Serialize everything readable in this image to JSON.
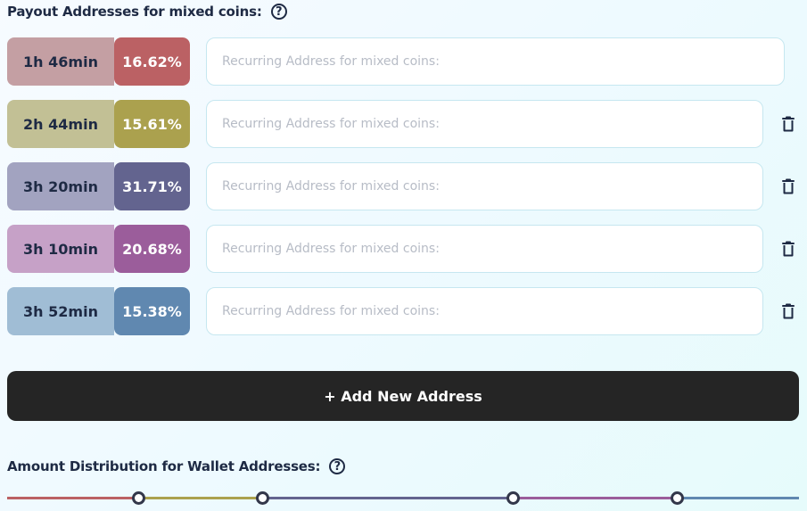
{
  "payout": {
    "title": "Payout Addresses for mixed coins:",
    "help_icon": "?",
    "rows": [
      {
        "time": "1h 46min",
        "percent": "16.62%",
        "placeholder": "Recurring Address for mixed coins:",
        "time_bg": "#c49fa3",
        "pct_bg": "#bb6164",
        "removable": false
      },
      {
        "time": "2h 44min",
        "percent": "15.61%",
        "placeholder": "Recurring Address for mixed coins:",
        "time_bg": "#c2c095",
        "pct_bg": "#aba14e",
        "removable": true
      },
      {
        "time": "3h 20min",
        "percent": "31.71%",
        "placeholder": "Recurring Address for mixed coins:",
        "time_bg": "#a2a3c0",
        "pct_bg": "#63648f",
        "removable": true
      },
      {
        "time": "3h 10min",
        "percent": "20.68%",
        "placeholder": "Recurring Address for mixed coins:",
        "time_bg": "#c6a1c7",
        "pct_bg": "#9b5d9b",
        "removable": true
      },
      {
        "time": "3h 52min",
        "percent": "15.38%",
        "placeholder": "Recurring Address for mixed coins:",
        "time_bg": "#a0bdd5",
        "pct_bg": "#6088b0",
        "removable": true
      }
    ],
    "add_button": "+ Add New Address"
  },
  "distribution": {
    "title": "Amount Distribution for Wallet Addresses:",
    "help_icon": "?",
    "segment_colors": [
      "#bb6164",
      "#aba14e",
      "#63648f",
      "#9b5d9b",
      "#6088b0"
    ]
  },
  "icons": {
    "help": "question-circle-icon",
    "remove": "trash-icon"
  }
}
